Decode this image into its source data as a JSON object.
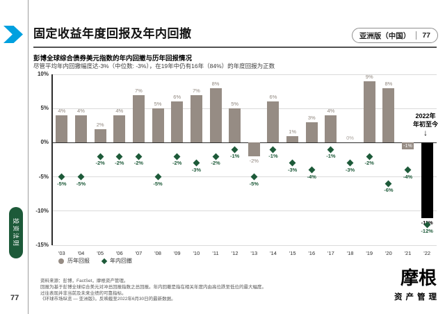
{
  "header": {
    "title": "固定收益年度回报及年内回撤",
    "badge_label": "亚洲版（中国）",
    "badge_page": "77"
  },
  "chart": {
    "heading": "彭博全球综合债券美元指数的年内回撤与历年回报情况",
    "subheading": "尽管平均年内回撤幅度达-3%（中位数: -3%），在19年中仍有16年（84%）的年度回报为正数",
    "annotation_line1": "2022年",
    "annotation_line2": "年初至今",
    "arrow": "↓"
  },
  "chart_data": {
    "type": "bar",
    "title": "彭博全球综合债券美元指数的年内回撤与历年回报情况",
    "categories": [
      "'03",
      "'04",
      "'05",
      "'06",
      "'07",
      "'08",
      "'09",
      "'10",
      "'11",
      "'12",
      "'13",
      "'14",
      "'15",
      "'16",
      "'17",
      "'18",
      "'19",
      "'20",
      "'21",
      "'22"
    ],
    "series": [
      {
        "name": "历年回报",
        "marker": "circle",
        "color": "#968c84",
        "values": [
          4,
          4,
          2,
          4,
          7,
          5,
          6,
          7,
          8,
          5,
          -2,
          6,
          1,
          3,
          4,
          0,
          9,
          8,
          -1,
          -11
        ]
      },
      {
        "name": "年内回撤",
        "marker": "diamond",
        "color": "#1d5a39",
        "values": [
          -5,
          -5,
          -2,
          -2,
          -2,
          -5,
          -2,
          -3,
          -2,
          -1,
          -5,
          -1,
          -3,
          -4,
          -1,
          -3,
          -2,
          -6,
          -4,
          -12
        ]
      }
    ],
    "ylim": [
      -15,
      10
    ],
    "yticks": [
      10,
      5,
      0,
      -5,
      -10,
      -15
    ],
    "ytick_suffix": "%",
    "grid": true,
    "legend_position": "bottom-left",
    "highlight_last_bar_color": "#000000"
  },
  "footnotes": [
    "资料来源：彭博，FactSet，摩根资产管理。",
    "回报为基于彭博全球综合美元对冲总回报指数之总回报。年内回撤是指在相关年度内由高位跌至低位的最大幅度。",
    "过往表现并非当前及未来业绩的可靠指标。",
    "《环球市场纵览 — 亚洲版》。反映截至2022年6月30日的最新数据。"
  ],
  "sidebar": {
    "tab": "投资法则",
    "page_number": "77"
  },
  "logo": {
    "primary": "摩根",
    "secondary": "资产管理"
  },
  "colors": {
    "accent_blue": "#00a0df",
    "bar": "#968c84",
    "bar_2022": "#000000",
    "drawdown_green": "#1d5a39"
  }
}
